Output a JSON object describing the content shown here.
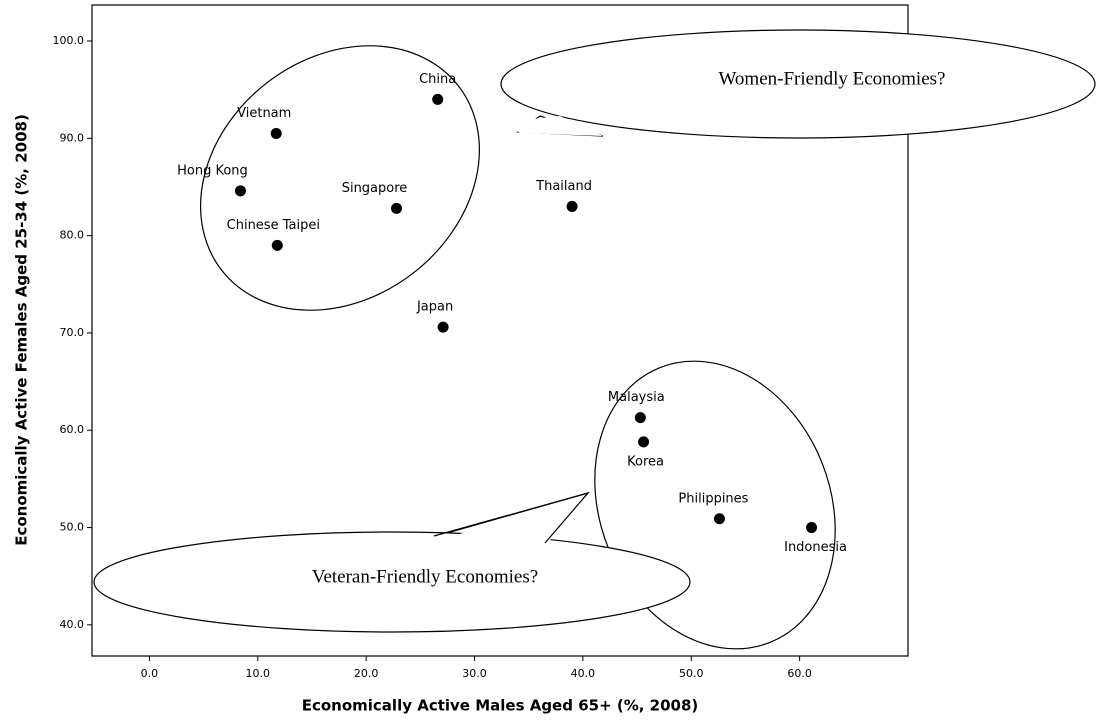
{
  "chart_data": {
    "type": "scatter",
    "xlabel": "Economically Active Males Aged 65+ (%, 2008)",
    "ylabel": "Economically Active Females Aged 25-34 (%, 2008)",
    "annotations": [
      "Women-Friendly Economies?",
      "Veteran-Friendly Economies?"
    ],
    "series": [
      {
        "color": "#000000",
        "labels": [
          "China",
          "Vietnam",
          "Hong Kong",
          "Singapore",
          "Chinese Taipei",
          "Thailand",
          "Japan",
          "Malaysia",
          "Korea",
          "Philippines",
          "Indonesia"
        ],
        "x": [
          26.6,
          11.7,
          8.4,
          22.8,
          11.8,
          39.0,
          27.1,
          45.3,
          45.6,
          52.6,
          61.1
        ],
        "values": [
          94.0,
          90.5,
          84.6,
          82.8,
          79.0,
          83.0,
          70.6,
          61.3,
          58.8,
          50.9,
          50.0
        ]
      }
    ],
    "xlim": [
      -5.3,
      70
    ],
    "ylim": [
      36.8,
      103.7
    ],
    "xticks": [
      {
        "value": 0,
        "label": "0.0"
      },
      {
        "value": 10,
        "label": "10.0"
      },
      {
        "value": 20,
        "label": "20.0"
      },
      {
        "value": 30,
        "label": "30.0"
      },
      {
        "value": 40,
        "label": "40.0"
      },
      {
        "value": 50,
        "label": "50.0"
      },
      {
        "value": 60,
        "label": "60.0"
      }
    ],
    "yticks": [
      {
        "value": 40,
        "label": "40.0"
      },
      {
        "value": 50,
        "label": "50.0"
      },
      {
        "value": 60,
        "label": "60.0"
      },
      {
        "value": 70,
        "label": "70.0"
      },
      {
        "value": 80,
        "label": "80.0"
      },
      {
        "value": 90,
        "label": "90.0"
      },
      {
        "value": 100,
        "label": "100.0"
      }
    ]
  }
}
